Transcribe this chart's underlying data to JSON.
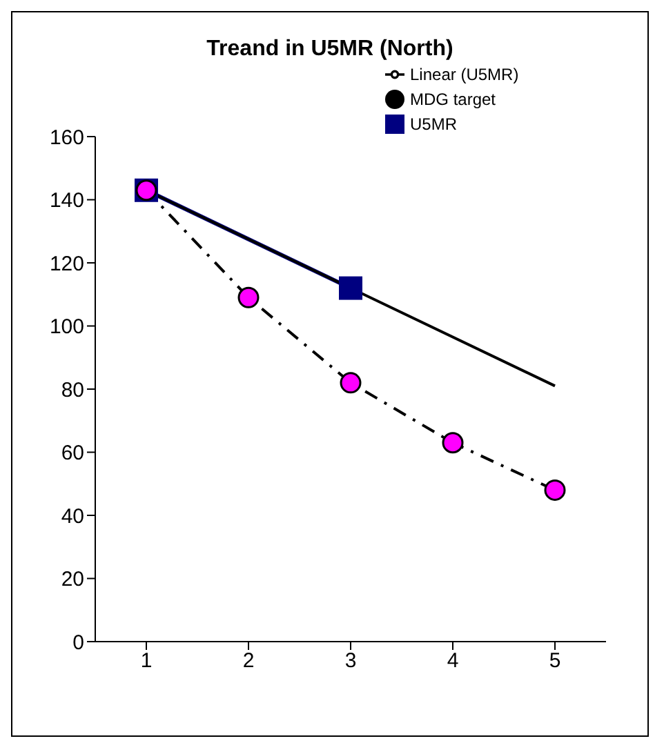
{
  "chart_data": {
    "type": "line",
    "title": "Treand in U5MR (North)",
    "x": [
      1,
      2,
      3,
      4,
      5
    ],
    "xlim": [
      0.5,
      5.5
    ],
    "xticks": [
      1,
      2,
      3,
      4,
      5
    ],
    "ylim": [
      0,
      160
    ],
    "yticks": [
      0,
      20,
      40,
      60,
      80,
      100,
      120,
      140,
      160
    ],
    "grid": false,
    "legend": "top right",
    "series": [
      {
        "name": "U5MR",
        "color": "#000080",
        "marker": "square",
        "line_style": "solid",
        "values": [
          143,
          null,
          112,
          null,
          null
        ]
      },
      {
        "name": "MDG target",
        "color": "#ff00ff",
        "marker": "circle",
        "line_style": "dashed",
        "values": [
          143,
          109,
          82,
          63,
          48
        ]
      },
      {
        "name": "Linear (U5MR)",
        "type": "line",
        "color": "#000000",
        "marker": "none",
        "line_style": "solid",
        "x": [
          1,
          5
        ],
        "values": [
          143,
          81
        ]
      }
    ]
  }
}
